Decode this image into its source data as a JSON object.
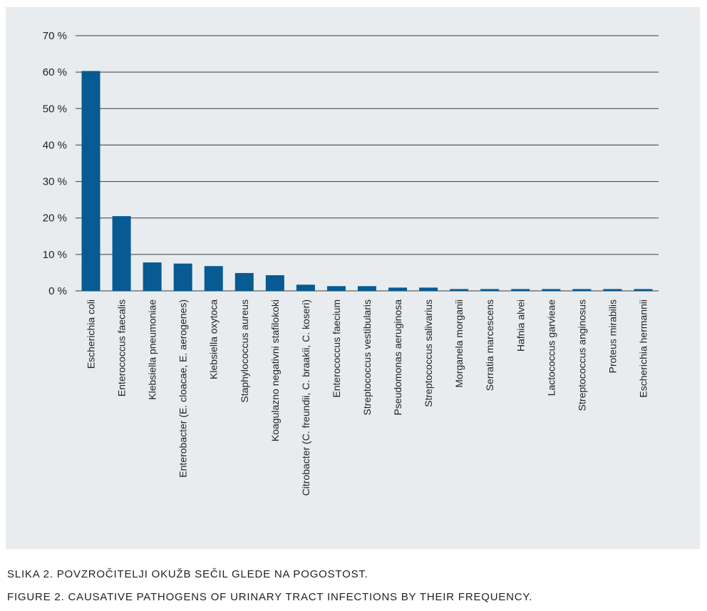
{
  "chart_data": {
    "type": "bar",
    "title": "",
    "xlabel": "",
    "ylabel": "",
    "ylim": [
      0,
      70
    ],
    "yticks": [
      0,
      10,
      20,
      30,
      40,
      50,
      60,
      70
    ],
    "ytick_suffix": " %",
    "grid": true,
    "legend": "none",
    "bar_color": "#075a92",
    "gridline_color": "#3a3a3a",
    "categories": [
      "Escherichia coli",
      "Enterococcus faecalis",
      "Klebsiella pneumoniae",
      "Enterobacter (E. cloacae, E. aerogenes)",
      "Klebsiella oxytoca",
      "Staphylococcus aureus",
      "Koagulazno negativni stafilokoki",
      "Citrobacter (C. freundii, C. braakii, C. koseri)",
      "Enterococcus faecium",
      "Streptococcus vestibularis",
      "Pseudomonas aeruginosa",
      "Streptococcus salivarius",
      "Morganela morganii",
      "Serratia marcescens",
      "Hafnia alvei",
      "Lactococcus garvieae",
      "Streptococcus anginosus",
      "Proteus mirabilis",
      "Escherichia hermannii"
    ],
    "values": [
      60.3,
      20.5,
      7.8,
      7.5,
      6.8,
      4.9,
      4.3,
      1.7,
      1.3,
      1.3,
      0.9,
      0.9,
      0.5,
      0.5,
      0.5,
      0.5,
      0.5,
      0.5,
      0.5
    ]
  },
  "captions": {
    "sl": "SLIKA 2. POVZROČITELJI OKUŽB SEČIL GLEDE NA POGOSTOST.",
    "en": "FIGURE 2. CAUSATIVE PATHOGENS OF URINARY TRACT INFECTIONS BY THEIR FREQUENCY."
  }
}
